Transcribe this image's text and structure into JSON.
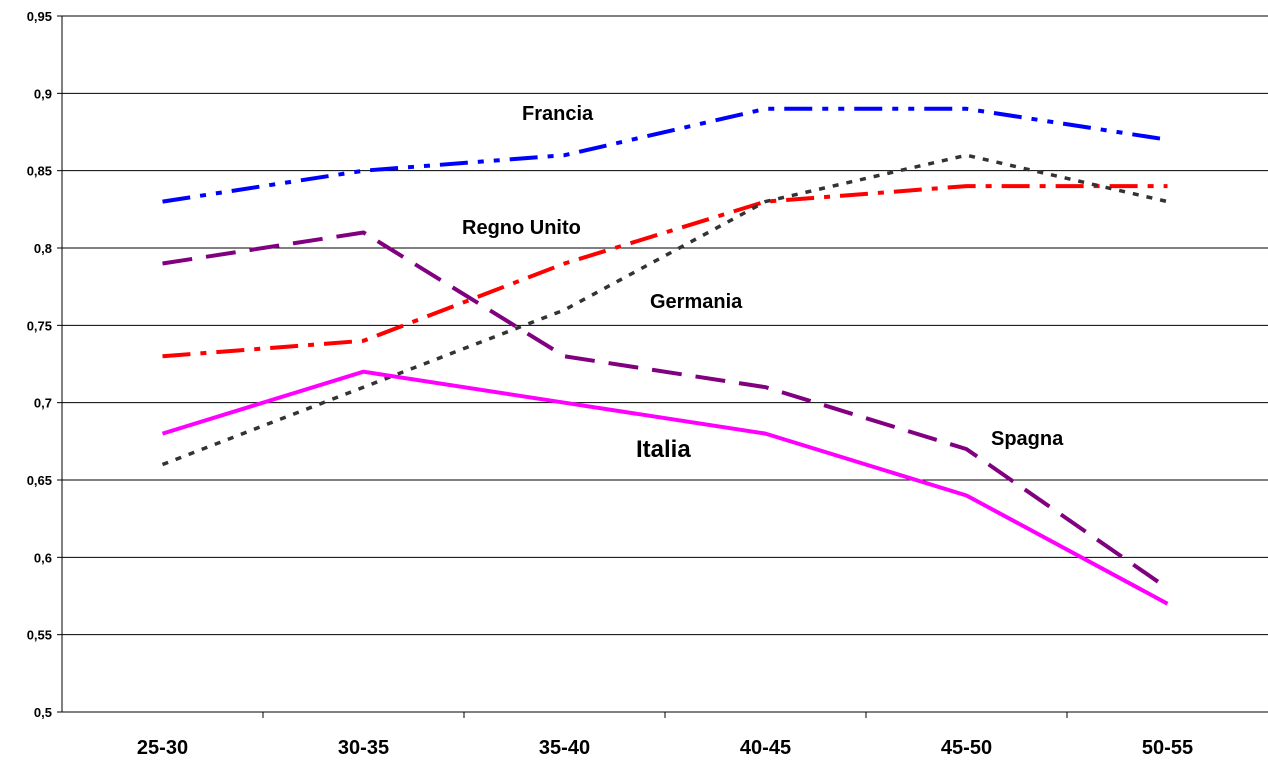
{
  "chart_data": {
    "type": "line",
    "categories": [
      "25-30",
      "30-35",
      "35-40",
      "40-45",
      "45-50",
      "50-55"
    ],
    "ylim": [
      0.5,
      0.95
    ],
    "y_ticks": [
      "0,5",
      "0,55",
      "0,6",
      "0,65",
      "0,7",
      "0,75",
      "0,8",
      "0,85",
      "0,9",
      "0,95"
    ],
    "grid": true,
    "series": [
      {
        "name": "Francia",
        "values": [
          0.83,
          0.85,
          0.86,
          0.89,
          0.89,
          0.87
        ],
        "color": "#0000ff",
        "style": "dash-dot-dot"
      },
      {
        "name": "Regno Unito",
        "values": [
          0.73,
          0.74,
          0.79,
          0.83,
          0.84,
          0.84
        ],
        "color": "#ff0000",
        "style": "dash-dot"
      },
      {
        "name": "Germania",
        "values": [
          0.66,
          0.71,
          0.76,
          0.83,
          0.86,
          0.83
        ],
        "color": "#333333",
        "style": "dotted"
      },
      {
        "name": "Spagna",
        "values": [
          0.79,
          0.81,
          0.73,
          0.71,
          0.67,
          0.58
        ],
        "color": "#800080",
        "style": "long-dash"
      },
      {
        "name": "Italia",
        "values": [
          0.68,
          0.72,
          0.7,
          0.68,
          0.64,
          0.57
        ],
        "color": "#ff00ff",
        "style": "solid"
      }
    ]
  }
}
